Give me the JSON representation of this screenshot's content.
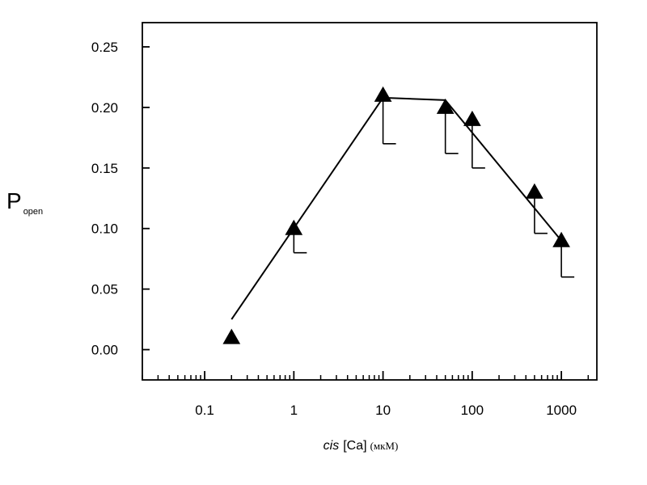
{
  "chart_data": {
    "type": "line",
    "x_scale": "log",
    "xlim": [
      0.02,
      2500
    ],
    "ylim": [
      -0.025,
      0.27
    ],
    "ylabel": "P",
    "ylabel_sub": "open",
    "xlabel_italic": "cis",
    "xlabel_main": "[Ca]",
    "xlabel_unit": "(мкМ)",
    "x_ticks": [
      {
        "value": 0.1,
        "label": "0.1"
      },
      {
        "value": 1,
        "label": "1"
      },
      {
        "value": 10,
        "label": "10"
      },
      {
        "value": 100,
        "label": "100"
      },
      {
        "value": 1000,
        "label": "1000"
      }
    ],
    "y_ticks": [
      {
        "value": 0.0,
        "label": "0.00"
      },
      {
        "value": 0.05,
        "label": "0.05"
      },
      {
        "value": 0.1,
        "label": "0.10"
      },
      {
        "value": 0.15,
        "label": "0.15"
      },
      {
        "value": 0.2,
        "label": "0.20"
      },
      {
        "value": 0.25,
        "label": "0.25"
      }
    ],
    "points": [
      {
        "x": 0.2,
        "y": 0.01
      },
      {
        "x": 1,
        "y": 0.1,
        "err_low": 0.08
      },
      {
        "x": 10,
        "y": 0.21,
        "err_low": 0.17
      },
      {
        "x": 50,
        "y": 0.2,
        "err_low": 0.162
      },
      {
        "x": 100,
        "y": 0.19,
        "err_low": 0.15
      },
      {
        "x": 500,
        "y": 0.13,
        "err_low": 0.096
      },
      {
        "x": 1000,
        "y": 0.09,
        "err_low": 0.06
      }
    ],
    "fit_line": [
      {
        "x": 0.2,
        "y": 0.025
      },
      {
        "x": 10,
        "y": 0.208
      },
      {
        "x": 50,
        "y": 0.206
      },
      {
        "x": 1000,
        "y": 0.09
      }
    ],
    "marker": "filled-triangle",
    "color": "#000000",
    "grid": false
  }
}
